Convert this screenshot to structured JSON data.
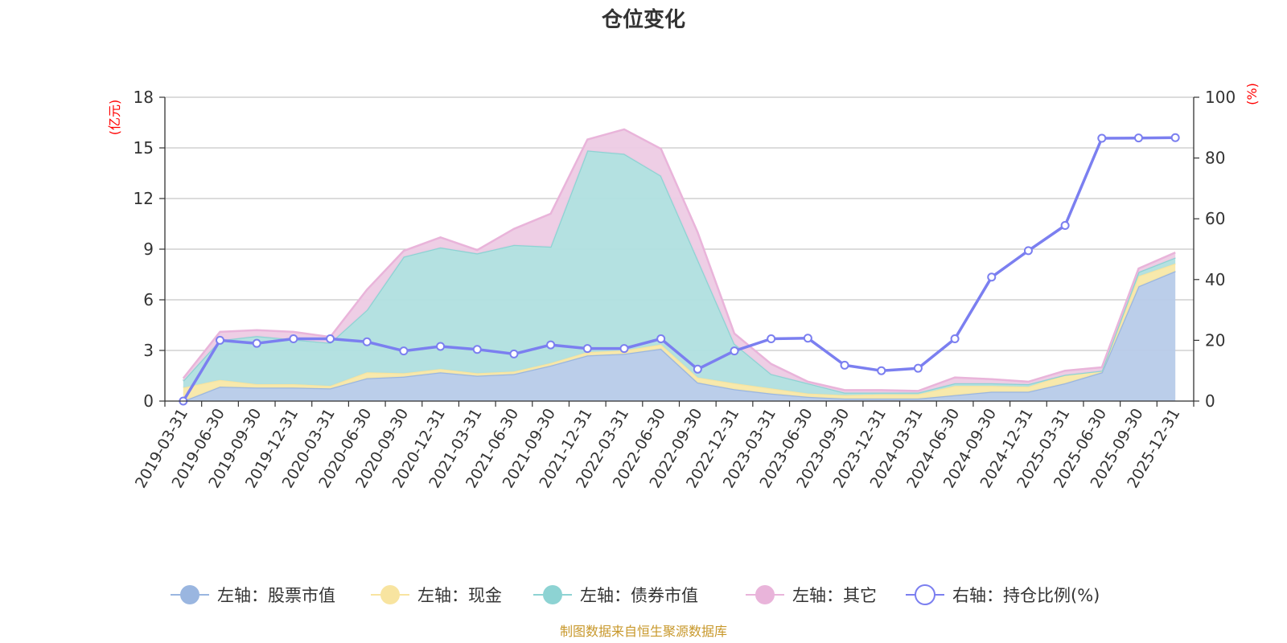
{
  "chart_data": {
    "type": "area",
    "title": "仓位变化",
    "left_axis_unit": "(亿元)",
    "right_axis_unit": "(%)",
    "left_ylim": [
      0,
      18
    ],
    "left_ticks": [
      0,
      3,
      6,
      9,
      12,
      15,
      18
    ],
    "right_ylim": [
      0,
      100
    ],
    "right_ticks": [
      0,
      20,
      40,
      60,
      80,
      100
    ],
    "categories": [
      "2019-03-31",
      "2019-06-30",
      "2019-09-30",
      "2019-12-31",
      "2020-03-31",
      "2020-06-30",
      "2020-09-30",
      "2020-12-31",
      "2021-03-31",
      "2021-06-30",
      "2021-09-30",
      "2021-12-31",
      "2022-03-31",
      "2022-06-30",
      "2022-09-30",
      "2022-12-31",
      "2023-03-31",
      "2023-06-30",
      "2023-09-30",
      "2023-12-31",
      "2024-03-31",
      "2024-06-30",
      "2024-09-30",
      "2024-12-31",
      "2025-03-31",
      "2025-06-30",
      "2025-09-30",
      "2025-12-31"
    ],
    "series": [
      {
        "name": "左轴：股票市值",
        "axis": "left",
        "color": "#9ab6e0",
        "fill": "#b7cbe9",
        "values": [
          0.0,
          0.85,
          0.8,
          0.8,
          0.75,
          1.35,
          1.45,
          1.7,
          1.5,
          1.6,
          2.1,
          2.7,
          2.8,
          3.1,
          1.1,
          0.7,
          0.45,
          0.25,
          0.15,
          0.15,
          0.15,
          0.35,
          0.55,
          0.55,
          1.05,
          1.7,
          6.8,
          7.7
        ]
      },
      {
        "name": "左轴：现金",
        "axis": "left",
        "color": "#f8e4a0",
        "fill": "#f8e8a8",
        "values": [
          0.8,
          0.4,
          0.2,
          0.2,
          0.15,
          0.35,
          0.2,
          0.2,
          0.15,
          0.15,
          0.15,
          0.2,
          0.2,
          0.25,
          0.3,
          0.35,
          0.3,
          0.2,
          0.2,
          0.25,
          0.25,
          0.55,
          0.35,
          0.3,
          0.5,
          0.1,
          0.6,
          0.45
        ]
      },
      {
        "name": "左轴：债券市值",
        "axis": "left",
        "color": "#8dd3d3",
        "fill": "#b0dfdf",
        "values": [
          0.4,
          2.35,
          2.85,
          2.65,
          2.55,
          3.7,
          6.9,
          7.2,
          7.1,
          7.5,
          6.9,
          11.95,
          11.65,
          10.0,
          7.0,
          2.35,
          0.85,
          0.6,
          0.15,
          0.1,
          0.1,
          0.15,
          0.15,
          0.15,
          0.0,
          0.0,
          0.25,
          0.35
        ]
      },
      {
        "name": "左轴：其它",
        "axis": "left",
        "color": "#e9b4da",
        "fill": "#edcbe4",
        "values": [
          0.15,
          0.5,
          0.35,
          0.45,
          0.35,
          1.2,
          0.35,
          0.6,
          0.2,
          0.95,
          1.95,
          0.65,
          1.45,
          1.6,
          1.6,
          0.6,
          0.6,
          0.1,
          0.15,
          0.15,
          0.1,
          0.35,
          0.25,
          0.15,
          0.25,
          0.2,
          0.2,
          0.3
        ]
      },
      {
        "name": "右轴：持仓比例(%)",
        "axis": "right",
        "color": "#7b7ff0",
        "type": "line",
        "values": [
          0,
          20,
          19,
          20.5,
          20.5,
          19.5,
          16.5,
          18,
          17,
          15.5,
          18.5,
          17.3,
          17.3,
          20.5,
          10.5,
          16.5,
          20.5,
          20.7,
          11.8,
          10,
          10.8,
          20.5,
          40.8,
          49.5,
          57.8,
          86.5,
          86.6,
          86.7
        ]
      }
    ]
  },
  "footer": "制图数据来自恒生聚源数据库"
}
